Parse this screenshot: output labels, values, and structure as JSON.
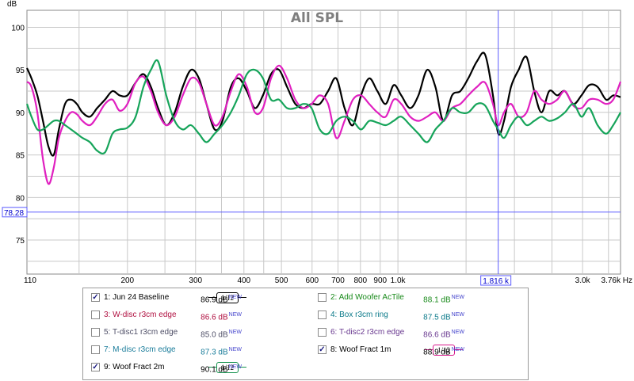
{
  "chart_data": {
    "type": "line",
    "title": "All SPL",
    "ylabel": "dB",
    "xlabel": "Hz",
    "x_scale": "log",
    "xlim": [
      110,
      3760
    ],
    "ylim": [
      71,
      102
    ],
    "x_ticks": [
      110,
      200,
      300,
      400,
      500,
      600,
      700,
      800,
      900,
      1000,
      3000,
      3760
    ],
    "x_tick_labels": [
      "110",
      "200",
      "300",
      "400",
      "500",
      "600",
      "700",
      "800",
      "900",
      "1.0k",
      "3.0k",
      "3.76k Hz"
    ],
    "y_ticks": [
      75,
      80,
      85,
      90,
      95,
      100
    ],
    "y_tick_labels": [
      "75",
      "80",
      "85",
      "90",
      "95",
      "100"
    ],
    "grid": true,
    "cursor": {
      "x": 1816,
      "x_label": "1.816 k",
      "y": 78.28,
      "y_label": "78.28"
    },
    "series": [
      {
        "name": "1: Jun 24 Baseline",
        "color": "#000000",
        "x": [
          110,
          113,
          117,
          121,
          125,
          129,
          133,
          138,
          143,
          148,
          153,
          160,
          167,
          175,
          183,
          191,
          200,
          210,
          220,
          230,
          240,
          252,
          265,
          278,
          292,
          306,
          320,
          336,
          352,
          370,
          388,
          407,
          427,
          448,
          470,
          493,
          517,
          543,
          570,
          598,
          628,
          660,
          693,
          728,
          765,
          803,
          843,
          885,
          930,
          975,
          1020,
          1075,
          1130,
          1190,
          1250,
          1310,
          1380,
          1450,
          1520,
          1600,
          1680,
          1760,
          1816,
          1880,
          1960,
          2050,
          2150,
          2250,
          2350,
          2460,
          2580,
          2700,
          2840,
          2980,
          3120,
          3280,
          3450,
          3600,
          3760
        ],
        "y": [
          95.2,
          94,
          92,
          89,
          86,
          85,
          88,
          91,
          91.5,
          91,
          90,
          89.5,
          90.5,
          91.5,
          92.5,
          92,
          92,
          93.5,
          94.5,
          93,
          90.5,
          88.5,
          90,
          93,
          95,
          94,
          91,
          88,
          89,
          93,
          94,
          92.5,
          90.5,
          92,
          94.5,
          95,
          93,
          91,
          90.5,
          91,
          91,
          92.5,
          94,
          90.5,
          88.5,
          92,
          94,
          92.5,
          91,
          93.2,
          92,
          90.5,
          92,
          95,
          93,
          89,
          92,
          92.5,
          94,
          96,
          96.8,
          92,
          87.5,
          89,
          93,
          95,
          96.5,
          92.5,
          90,
          92.5,
          92,
          92.5,
          91,
          92,
          93.2,
          93,
          91.5,
          92,
          91.8
        ]
      },
      {
        "name": "8: Woof Fract 1m",
        "color": "#e020c0",
        "x": [
          110,
          113,
          117,
          121,
          125,
          129,
          133,
          138,
          143,
          148,
          153,
          160,
          167,
          175,
          183,
          191,
          200,
          210,
          220,
          230,
          240,
          252,
          265,
          278,
          292,
          306,
          320,
          336,
          352,
          370,
          388,
          407,
          427,
          448,
          470,
          493,
          517,
          543,
          570,
          598,
          628,
          660,
          693,
          728,
          765,
          803,
          843,
          885,
          930,
          975,
          1020,
          1075,
          1130,
          1190,
          1250,
          1310,
          1380,
          1450,
          1520,
          1600,
          1680,
          1760,
          1816,
          1880,
          1960,
          2050,
          2150,
          2250,
          2350,
          2460,
          2580,
          2700,
          2840,
          2980,
          3120,
          3280,
          3450,
          3600,
          3760
        ],
        "y": [
          93.6,
          93,
          90,
          84.5,
          81.6,
          83.5,
          87,
          89,
          90,
          89.8,
          89,
          88.5,
          89.5,
          91,
          91.5,
          90.2,
          91,
          93.5,
          94.2,
          92.5,
          90,
          88.5,
          89.5,
          92,
          94,
          93.5,
          91,
          88.5,
          89.5,
          92.5,
          94.5,
          93,
          90,
          90.5,
          94,
          95.5,
          94,
          91.5,
          90.5,
          91,
          92,
          91,
          87,
          89,
          91.5,
          92,
          91,
          90,
          89.5,
          91.5,
          91,
          89.5,
          89,
          89.5,
          90,
          89,
          90.5,
          91,
          92,
          93,
          93.5,
          91,
          88.5,
          90,
          91,
          89.5,
          90,
          92.5,
          91.5,
          91,
          91.5,
          92.5,
          90.8,
          90.5,
          91.5,
          91.5,
          91,
          91.5,
          93.6
        ]
      },
      {
        "name": "9: Woof Fract 2m",
        "color": "#16a45a",
        "x": [
          110,
          113,
          117,
          121,
          125,
          129,
          133,
          138,
          143,
          148,
          153,
          160,
          167,
          175,
          183,
          191,
          200,
          210,
          220,
          230,
          240,
          252,
          265,
          278,
          292,
          306,
          320,
          336,
          352,
          370,
          388,
          407,
          427,
          448,
          470,
          493,
          517,
          543,
          570,
          598,
          628,
          660,
          693,
          728,
          765,
          803,
          843,
          885,
          930,
          975,
          1020,
          1075,
          1130,
          1190,
          1250,
          1310,
          1380,
          1450,
          1520,
          1600,
          1680,
          1760,
          1816,
          1880,
          1960,
          2050,
          2150,
          2250,
          2350,
          2460,
          2580,
          2700,
          2840,
          2980,
          3120,
          3280,
          3450,
          3600,
          3760
        ],
        "y": [
          91,
          89.5,
          88,
          88,
          88.5,
          89,
          89,
          88.5,
          88,
          87.5,
          87,
          86.5,
          85.5,
          85.3,
          87.5,
          88,
          88.2,
          89.5,
          93,
          95,
          96,
          92,
          89,
          88,
          88.5,
          87.5,
          86.5,
          87.5,
          88.5,
          90,
          92,
          94.5,
          95,
          94,
          91.5,
          91.5,
          90.5,
          90.5,
          91,
          90.5,
          88,
          87.5,
          89,
          89.5,
          89,
          88,
          89,
          88.8,
          88.5,
          89,
          89.5,
          88.5,
          87.5,
          86.5,
          88,
          89,
          90.5,
          90,
          90,
          91,
          90.8,
          89,
          88,
          87,
          88.5,
          89.5,
          88.5,
          89,
          89.5,
          89,
          89.3,
          90,
          91,
          89.5,
          90.5,
          88.5,
          87.5,
          88.5,
          90
        ]
      }
    ]
  },
  "legend": {
    "items": [
      {
        "checked": true,
        "name": "1: Jun 24 Baseline",
        "value": "86.9 dB",
        "new": "NEW",
        "color": "#000000",
        "smoothing": "1/12"
      },
      {
        "checked": false,
        "name": "2: Add Woofer AcTile",
        "value": "88.1 dB",
        "new": "NEW",
        "color": "#188a1a"
      },
      {
        "checked": false,
        "name": "3: W-disc r3cm edge",
        "value": "86.6 dB",
        "new": "NEW",
        "color": "#b01040"
      },
      {
        "checked": false,
        "name": "4: Box r3cm ring",
        "value": "87.5 dB",
        "new": "NEW",
        "color": "#0c7a8a"
      },
      {
        "checked": false,
        "name": "5: T-disc1 r3cm edge",
        "value": "85.0 dB",
        "new": "NEW",
        "color": "#505068"
      },
      {
        "checked": false,
        "name": "6: T-disc2 r3cm edge",
        "value": "86.6 dB",
        "new": "NEW",
        "color": "#6a3a90"
      },
      {
        "checked": false,
        "name": "7: M-disc r3cm edge",
        "value": "87.3 dB",
        "new": "NEW",
        "color": "#1b7d9b"
      },
      {
        "checked": true,
        "name": "8: Woof Fract 1m",
        "value": "88.9 dB",
        "new": "NEW",
        "color": "#d8188c",
        "smoothing": "1/12"
      },
      {
        "checked": true,
        "name": "9: Woof Fract 2m",
        "value": "90.1 dB",
        "new": "NEW",
        "color": "#15924e",
        "smoothing": "1/12"
      }
    ]
  },
  "colors": {
    "grid": "#c8c8c8",
    "cursor": "#5b5bff",
    "plot_border": "#888888"
  }
}
